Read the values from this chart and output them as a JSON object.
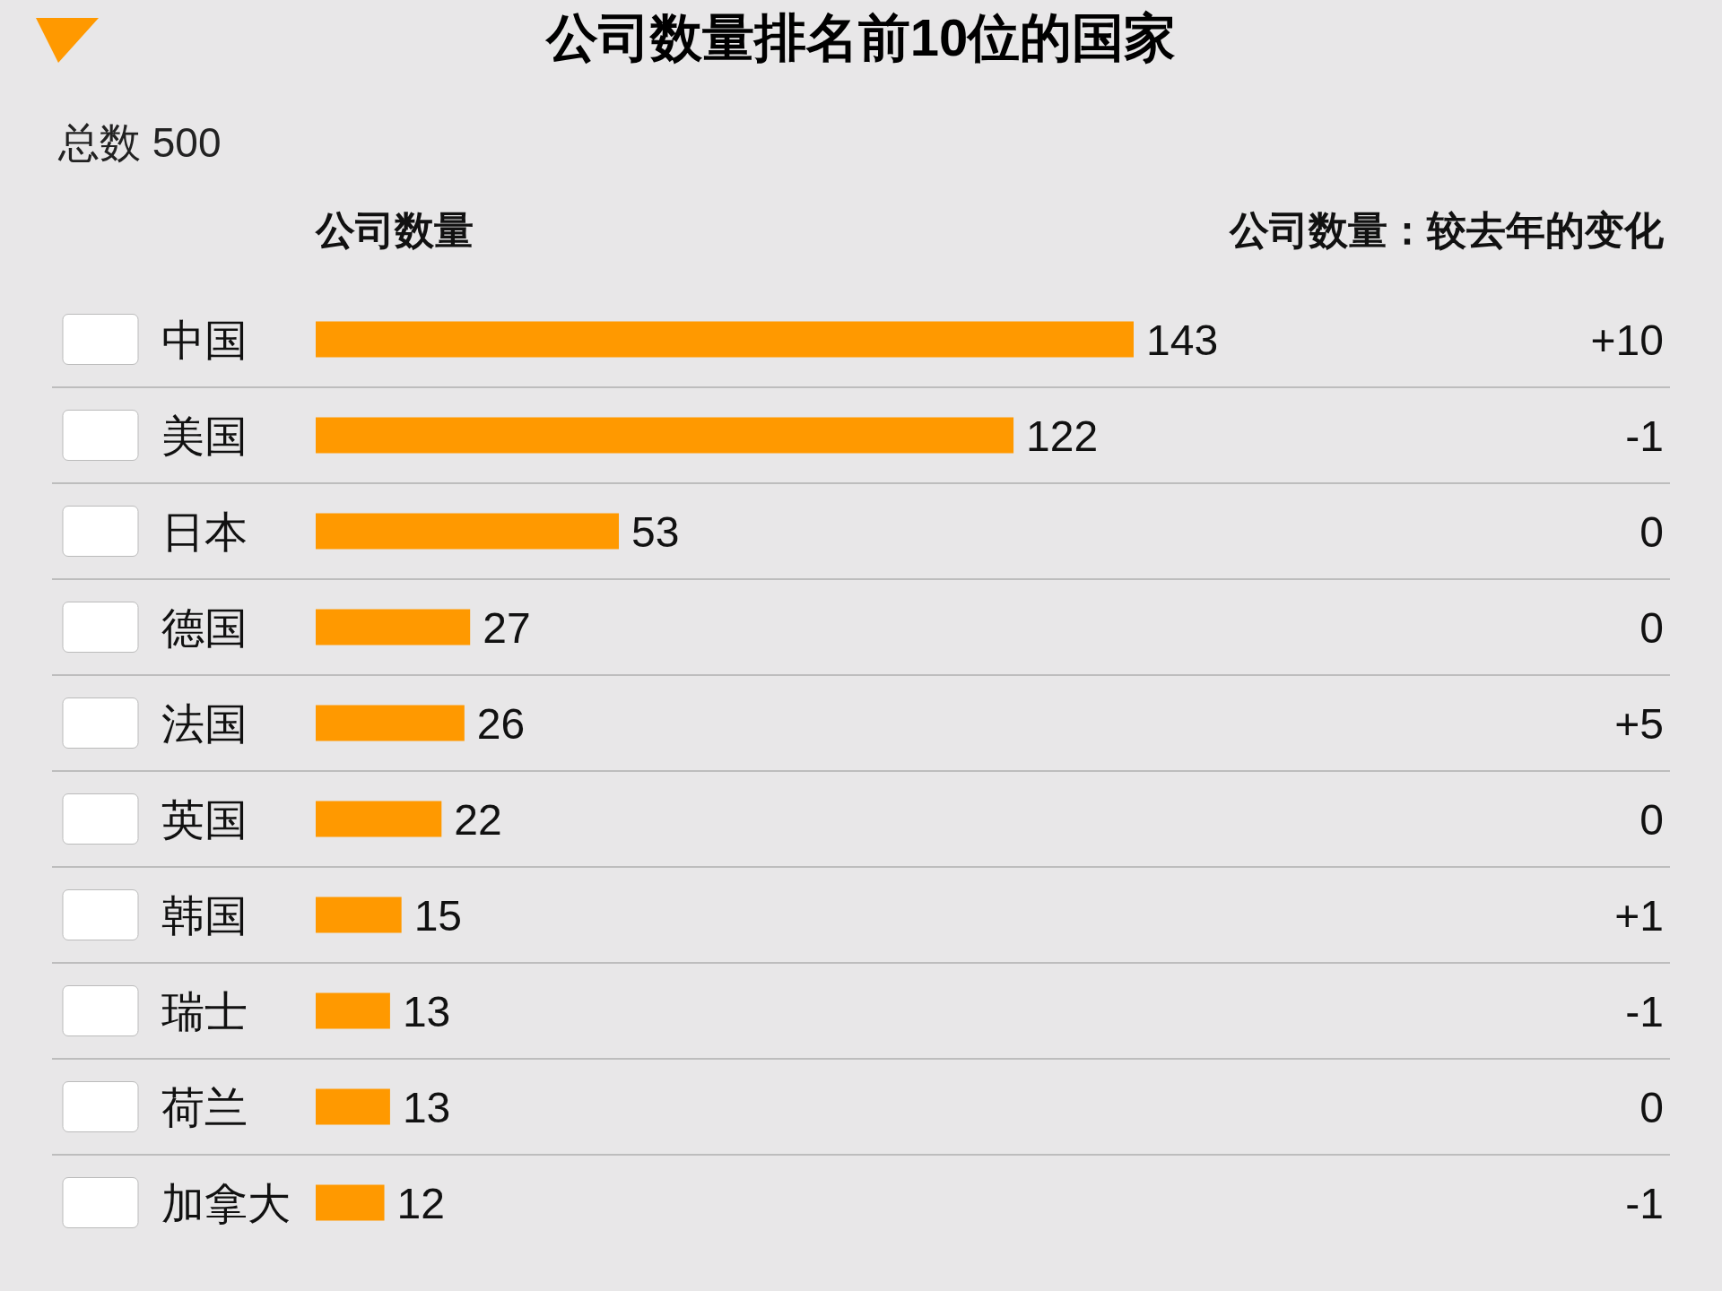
{
  "chart_data": {
    "type": "bar",
    "orientation": "horizontal",
    "title": "公司数量排名前10位的国家",
    "subtitle": "总数 500",
    "xlabel": "公司数量",
    "categories": [
      "中国",
      "美国",
      "日本",
      "德国",
      "法国",
      "英国",
      "韩国",
      "瑞士",
      "荷兰",
      "加拿大"
    ],
    "values": [
      143,
      122,
      53,
      27,
      26,
      22,
      15,
      13,
      13,
      12
    ],
    "color": "#ff9900",
    "data_labels": true,
    "annotations": [
      "公司数量：较去年的变化",
      "+10",
      "-1",
      "0",
      "0",
      "+5",
      "0",
      "+1",
      "-1",
      "0",
      "-1"
    ]
  }
}
